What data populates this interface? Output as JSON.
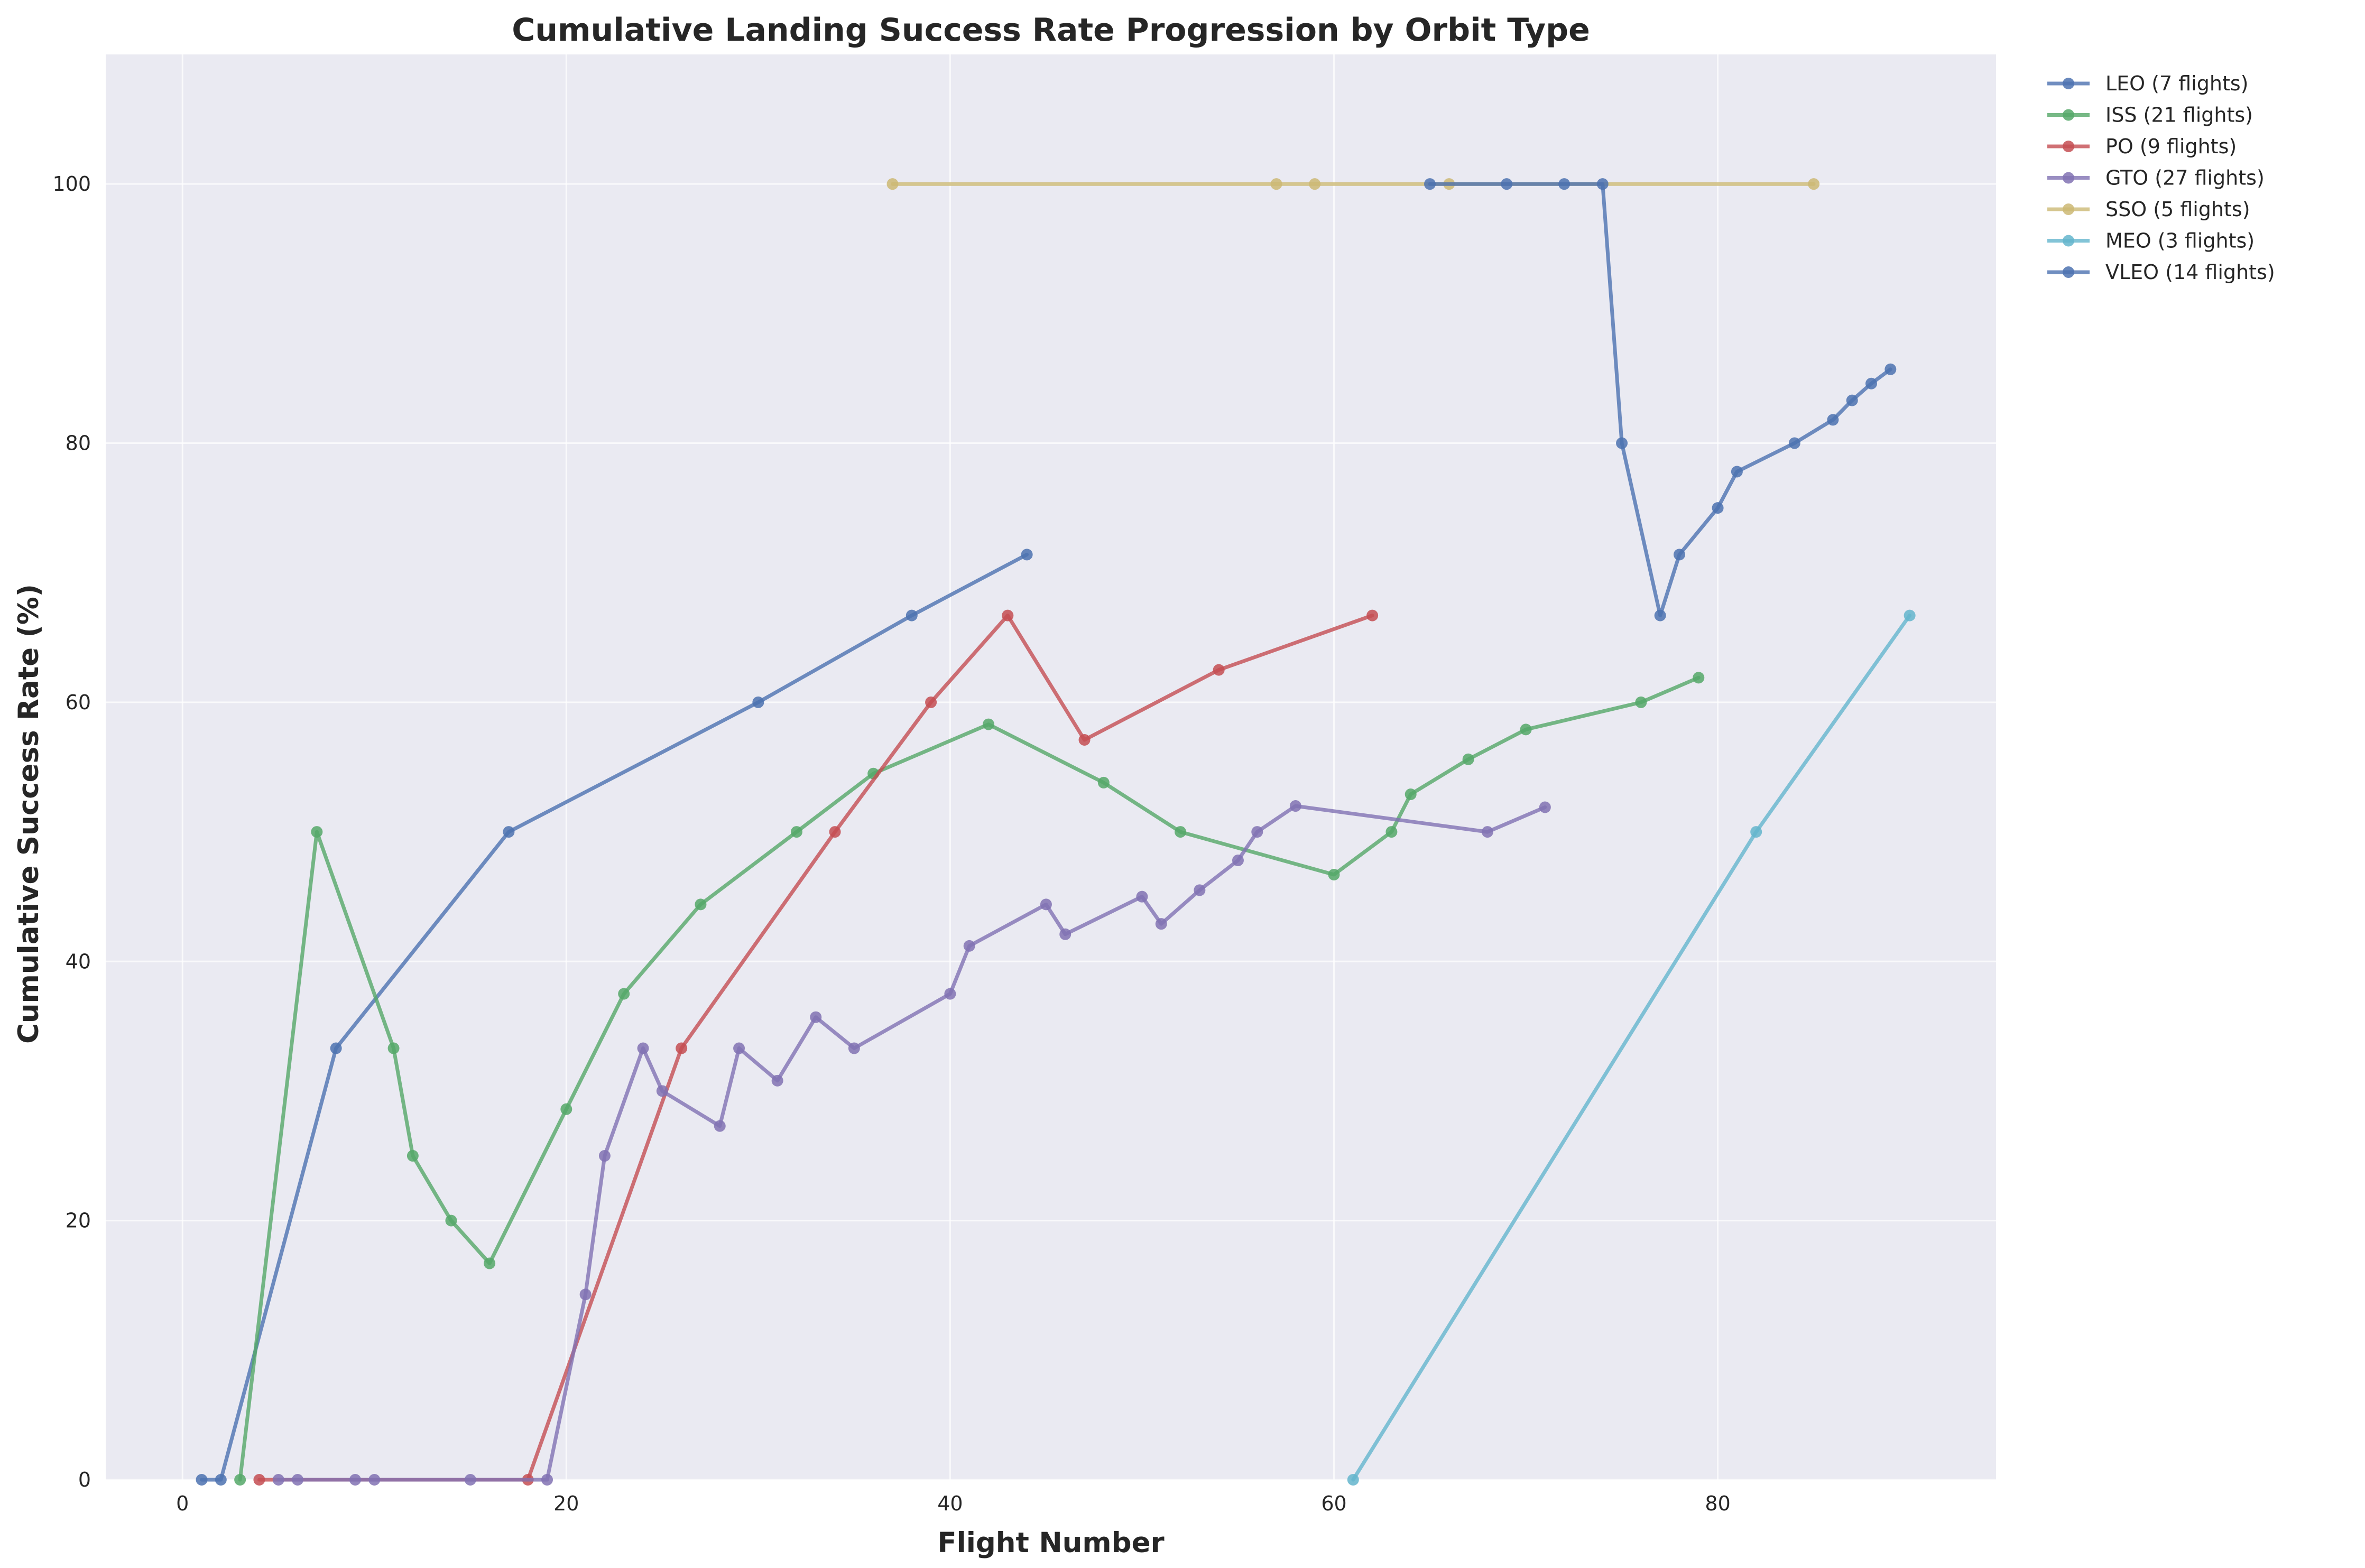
{
  "chart_data": {
    "type": "line",
    "title": "Cumulative Landing Success Rate Progression by Orbit Type",
    "xlabel": "Flight Number",
    "ylabel": "Cumulative Success Rate (%)",
    "xlim": [
      -4,
      94.5
    ],
    "ylim": [
      0,
      110
    ],
    "xticks": [
      0,
      20,
      40,
      60,
      80
    ],
    "yticks": [
      0,
      20,
      40,
      60,
      80,
      100
    ],
    "grid": true,
    "legend_position": "outside-top-right",
    "series": [
      {
        "name": "LEO (7 flights)",
        "color": "#4c72b0",
        "x": [
          1,
          2,
          8,
          17,
          30,
          38,
          44
        ],
        "y": [
          0,
          0,
          33.3,
          50,
          60,
          66.7,
          71.4
        ]
      },
      {
        "name": "ISS (21 flights)",
        "color": "#55a868",
        "x": [
          3,
          7,
          11,
          12,
          14,
          16,
          20,
          23,
          27,
          32,
          36,
          42,
          48,
          52,
          60,
          63,
          64,
          67,
          70,
          76,
          79
        ],
        "y": [
          0,
          50,
          33.3,
          25,
          20,
          16.7,
          28.6,
          37.5,
          44.4,
          50,
          54.5,
          58.3,
          53.8,
          50,
          46.7,
          50,
          52.9,
          55.6,
          57.9,
          60,
          61.9
        ]
      },
      {
        "name": "PO (9 flights)",
        "color": "#c44e52",
        "x": [
          4,
          18,
          26,
          34,
          39,
          43,
          47,
          54,
          62
        ],
        "y": [
          0,
          0,
          33.3,
          50,
          60,
          66.7,
          57.1,
          62.5,
          66.7
        ]
      },
      {
        "name": "GTO (27 flights)",
        "color": "#8172b3",
        "x": [
          5,
          6,
          9,
          10,
          15,
          19,
          21,
          22,
          24,
          25,
          28,
          29,
          31,
          33,
          35,
          40,
          41,
          45,
          46,
          50,
          51,
          53,
          55,
          56,
          58,
          68,
          71
        ],
        "y": [
          0,
          0,
          0,
          0,
          0,
          0,
          14.3,
          25,
          33.3,
          30,
          27.3,
          33.3,
          30.8,
          35.7,
          33.3,
          37.5,
          41.2,
          44.4,
          42.1,
          45,
          42.9,
          45.5,
          47.8,
          50,
          52,
          50,
          51.9
        ]
      },
      {
        "name": "SSO (5 flights)",
        "color": "#ccb974",
        "x": [
          37,
          57,
          59,
          66,
          85
        ],
        "y": [
          100,
          100,
          100,
          100,
          100
        ]
      },
      {
        "name": "MEO (3 flights)",
        "color": "#64b5cd",
        "x": [
          61,
          82,
          90
        ],
        "y": [
          0,
          50,
          66.7
        ]
      },
      {
        "name": "VLEO (14 flights)",
        "color": "#4c72b0",
        "x": [
          65,
          69,
          72,
          74,
          75,
          77,
          78,
          80,
          81,
          84,
          86,
          87,
          88,
          89
        ],
        "y": [
          100,
          100,
          100,
          100,
          80,
          66.7,
          71.4,
          75,
          77.8,
          80,
          81.8,
          83.3,
          84.6,
          85.7
        ]
      }
    ]
  }
}
